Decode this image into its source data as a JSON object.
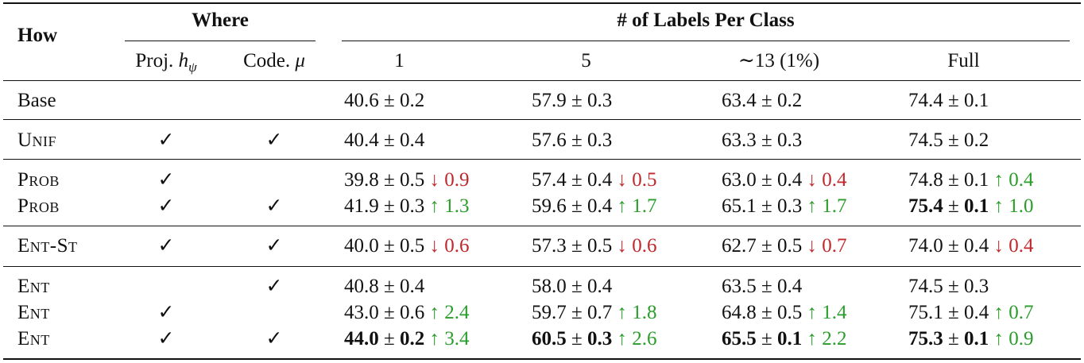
{
  "header": {
    "how": "How",
    "where": "Where",
    "labels_group": "# of Labels Per Class",
    "proj_label": "Proj.",
    "proj_symbol": "h",
    "proj_sub": "ψ",
    "code_label": "Code.",
    "code_symbol": "μ",
    "col_1": "1",
    "col_5": "5",
    "col_13": "∼13 (1%)",
    "col_full": "Full"
  },
  "check": "✓",
  "pm": "±",
  "rows": [
    {
      "method": "Base",
      "proj": false,
      "code": false,
      "cells": [
        {
          "mean": "40.6",
          "std": "0.2",
          "bold": false,
          "delta": "",
          "dir": ""
        },
        {
          "mean": "57.9",
          "std": "0.3",
          "bold": false,
          "delta": "",
          "dir": ""
        },
        {
          "mean": "63.4",
          "std": "0.2",
          "bold": false,
          "delta": "",
          "dir": ""
        },
        {
          "mean": "74.4",
          "std": "0.1",
          "bold": false,
          "delta": "",
          "dir": ""
        }
      ]
    },
    {
      "method": "Unif",
      "proj": true,
      "code": true,
      "cells": [
        {
          "mean": "40.4",
          "std": "0.4",
          "bold": false,
          "delta": "",
          "dir": ""
        },
        {
          "mean": "57.6",
          "std": "0.3",
          "bold": false,
          "delta": "",
          "dir": ""
        },
        {
          "mean": "63.3",
          "std": "0.3",
          "bold": false,
          "delta": "",
          "dir": ""
        },
        {
          "mean": "74.5",
          "std": "0.2",
          "bold": false,
          "delta": "",
          "dir": ""
        }
      ]
    },
    {
      "method": "Prob",
      "proj": true,
      "code": false,
      "cells": [
        {
          "mean": "39.8",
          "std": "0.5",
          "bold": false,
          "delta": "0.9",
          "dir": "down"
        },
        {
          "mean": "57.4",
          "std": "0.4",
          "bold": false,
          "delta": "0.5",
          "dir": "down"
        },
        {
          "mean": "63.0",
          "std": "0.4",
          "bold": false,
          "delta": "0.4",
          "dir": "down"
        },
        {
          "mean": "74.8",
          "std": "0.1",
          "bold": false,
          "delta": "0.4",
          "dir": "up"
        }
      ]
    },
    {
      "method": "Prob",
      "proj": true,
      "code": true,
      "cells": [
        {
          "mean": "41.9",
          "std": "0.3",
          "bold": false,
          "delta": "1.3",
          "dir": "up"
        },
        {
          "mean": "59.6",
          "std": "0.4",
          "bold": false,
          "delta": "1.7",
          "dir": "up"
        },
        {
          "mean": "65.1",
          "std": "0.3",
          "bold": false,
          "delta": "1.7",
          "dir": "up"
        },
        {
          "mean": "75.4",
          "std": "0.1",
          "bold": true,
          "delta": "1.0",
          "dir": "up"
        }
      ]
    },
    {
      "method": "Ent-St",
      "proj": true,
      "code": true,
      "cells": [
        {
          "mean": "40.0",
          "std": "0.5",
          "bold": false,
          "delta": "0.6",
          "dir": "down"
        },
        {
          "mean": "57.3",
          "std": "0.5",
          "bold": false,
          "delta": "0.6",
          "dir": "down"
        },
        {
          "mean": "62.7",
          "std": "0.5",
          "bold": false,
          "delta": "0.7",
          "dir": "down"
        },
        {
          "mean": "74.0",
          "std": "0.4",
          "bold": false,
          "delta": "0.4",
          "dir": "down"
        }
      ]
    },
    {
      "method": "Ent",
      "proj": false,
      "code": true,
      "cells": [
        {
          "mean": "40.8",
          "std": "0.4",
          "bold": false,
          "delta": "",
          "dir": ""
        },
        {
          "mean": "58.0",
          "std": "0.4",
          "bold": false,
          "delta": "",
          "dir": ""
        },
        {
          "mean": "63.5",
          "std": "0.4",
          "bold": false,
          "delta": "",
          "dir": ""
        },
        {
          "mean": "74.5",
          "std": "0.3",
          "bold": false,
          "delta": "",
          "dir": ""
        }
      ]
    },
    {
      "method": "Ent",
      "proj": true,
      "code": false,
      "cells": [
        {
          "mean": "43.0",
          "std": "0.6",
          "bold": false,
          "delta": "2.4",
          "dir": "up"
        },
        {
          "mean": "59.7",
          "std": "0.7",
          "bold": false,
          "delta": "1.8",
          "dir": "up"
        },
        {
          "mean": "64.8",
          "std": "0.5",
          "bold": false,
          "delta": "1.4",
          "dir": "up"
        },
        {
          "mean": "75.1",
          "std": "0.4",
          "bold": false,
          "delta": "0.7",
          "dir": "up"
        }
      ]
    },
    {
      "method": "Ent",
      "proj": true,
      "code": true,
      "cells": [
        {
          "mean": "44.0",
          "std": "0.2",
          "bold": true,
          "delta": "3.4",
          "dir": "up"
        },
        {
          "mean": "60.5",
          "std": "0.3",
          "bold": true,
          "delta": "2.6",
          "dir": "up"
        },
        {
          "mean": "65.5",
          "std": "0.1",
          "bold": true,
          "delta": "2.2",
          "dir": "up"
        },
        {
          "mean": "75.3",
          "std": "0.1",
          "bold": true,
          "delta": "0.9",
          "dir": "up"
        }
      ]
    }
  ],
  "arrows": {
    "up": "↑",
    "down": "↓"
  },
  "colors": {
    "up": "#2a9d2a",
    "down": "#c0282d"
  }
}
